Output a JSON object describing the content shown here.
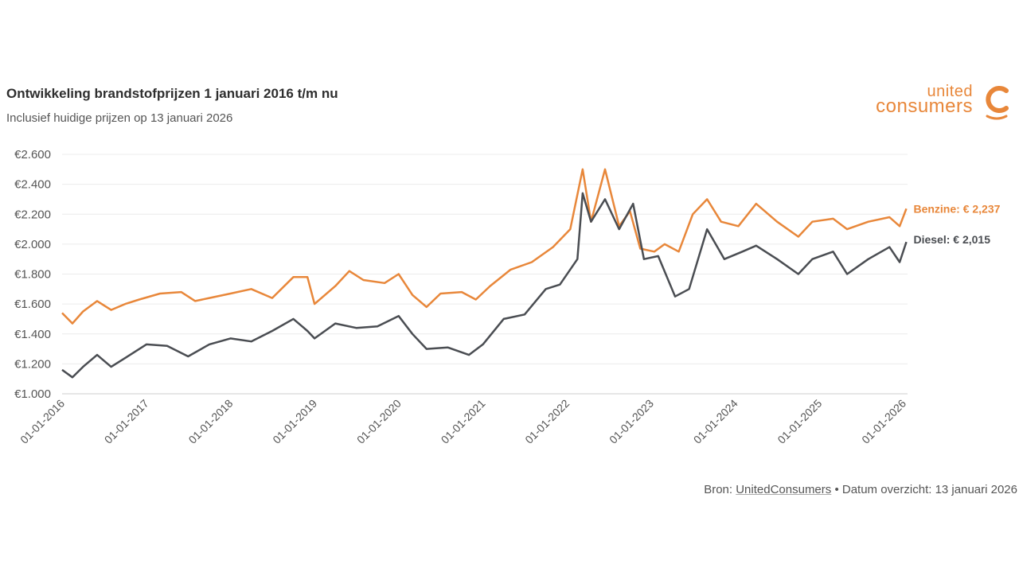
{
  "chart_data": {
    "type": "line",
    "title": "Ontwikkeling brandstofprijzen 1 januari 2016 t/m nu",
    "subtitle": "Inclusief huidige prijzen op 13 januari 2026",
    "xlabel": "",
    "ylabel": "",
    "xlim": [
      "2016-01-01",
      "2026-01-13"
    ],
    "ylim": [
      1.0,
      2.6
    ],
    "y_ticks": [
      "€1.000",
      "€1.200",
      "€1.400",
      "€1.600",
      "€1.800",
      "€2.000",
      "€2.200",
      "€2.400",
      "€2.600"
    ],
    "y_tick_values": [
      1.0,
      1.2,
      1.4,
      1.6,
      1.8,
      2.0,
      2.2,
      2.4,
      2.6
    ],
    "x_ticks": [
      "01-01-2016",
      "01-01-2017",
      "01-01-2018",
      "01-01-2019",
      "01-01-2020",
      "01-01-2021",
      "01-01-2022",
      "01-01-2023",
      "01-01-2024",
      "01-01-2025",
      "01-01-2026"
    ],
    "grid": "horizontal",
    "legend": "end-labels-right",
    "series": [
      {
        "name": "Benzine",
        "end_label": "Benzine: € 2,237",
        "color": "#e8873a",
        "points": [
          [
            "2016-01-01",
            1.54
          ],
          [
            "2016-02-15",
            1.47
          ],
          [
            "2016-04-01",
            1.55
          ],
          [
            "2016-06-01",
            1.62
          ],
          [
            "2016-08-01",
            1.56
          ],
          [
            "2016-10-01",
            1.6
          ],
          [
            "2016-12-01",
            1.63
          ],
          [
            "2017-03-01",
            1.67
          ],
          [
            "2017-06-01",
            1.68
          ],
          [
            "2017-08-01",
            1.62
          ],
          [
            "2017-10-01",
            1.64
          ],
          [
            "2018-01-01",
            1.67
          ],
          [
            "2018-04-01",
            1.7
          ],
          [
            "2018-07-01",
            1.64
          ],
          [
            "2018-10-01",
            1.78
          ],
          [
            "2018-12-01",
            1.78
          ],
          [
            "2019-01-01",
            1.6
          ],
          [
            "2019-04-01",
            1.72
          ],
          [
            "2019-06-01",
            1.82
          ],
          [
            "2019-08-01",
            1.76
          ],
          [
            "2019-11-01",
            1.74
          ],
          [
            "2020-01-01",
            1.8
          ],
          [
            "2020-03-01",
            1.66
          ],
          [
            "2020-05-01",
            1.58
          ],
          [
            "2020-07-01",
            1.67
          ],
          [
            "2020-10-01",
            1.68
          ],
          [
            "2020-12-01",
            1.63
          ],
          [
            "2021-02-01",
            1.72
          ],
          [
            "2021-05-01",
            1.83
          ],
          [
            "2021-08-01",
            1.88
          ],
          [
            "2021-11-01",
            1.98
          ],
          [
            "2022-01-15",
            2.1
          ],
          [
            "2022-03-10",
            2.5
          ],
          [
            "2022-04-15",
            2.15
          ],
          [
            "2022-06-15",
            2.5
          ],
          [
            "2022-08-15",
            2.12
          ],
          [
            "2022-10-01",
            2.22
          ],
          [
            "2022-11-15",
            1.97
          ],
          [
            "2023-01-15",
            1.95
          ],
          [
            "2023-03-01",
            2.0
          ],
          [
            "2023-05-01",
            1.95
          ],
          [
            "2023-07-01",
            2.2
          ],
          [
            "2023-09-01",
            2.3
          ],
          [
            "2023-11-01",
            2.15
          ],
          [
            "2024-01-15",
            2.12
          ],
          [
            "2024-04-01",
            2.27
          ],
          [
            "2024-07-01",
            2.15
          ],
          [
            "2024-10-01",
            2.05
          ],
          [
            "2024-12-01",
            2.15
          ],
          [
            "2025-03-01",
            2.17
          ],
          [
            "2025-05-01",
            2.1
          ],
          [
            "2025-08-01",
            2.15
          ],
          [
            "2025-11-01",
            2.18
          ],
          [
            "2025-12-15",
            2.12
          ],
          [
            "2026-01-13",
            2.237
          ]
        ]
      },
      {
        "name": "Diesel",
        "end_label": "Diesel: € 2,015",
        "color": "#4a4d52",
        "points": [
          [
            "2016-01-01",
            1.16
          ],
          [
            "2016-02-15",
            1.11
          ],
          [
            "2016-04-01",
            1.18
          ],
          [
            "2016-06-01",
            1.26
          ],
          [
            "2016-08-01",
            1.18
          ],
          [
            "2016-10-01",
            1.24
          ],
          [
            "2017-01-01",
            1.33
          ],
          [
            "2017-04-01",
            1.32
          ],
          [
            "2017-07-01",
            1.25
          ],
          [
            "2017-10-01",
            1.33
          ],
          [
            "2018-01-01",
            1.37
          ],
          [
            "2018-04-01",
            1.35
          ],
          [
            "2018-07-01",
            1.42
          ],
          [
            "2018-10-01",
            1.5
          ],
          [
            "2018-12-01",
            1.42
          ],
          [
            "2019-01-01",
            1.37
          ],
          [
            "2019-04-01",
            1.47
          ],
          [
            "2019-07-01",
            1.44
          ],
          [
            "2019-10-01",
            1.45
          ],
          [
            "2020-01-01",
            1.52
          ],
          [
            "2020-03-01",
            1.4
          ],
          [
            "2020-05-01",
            1.3
          ],
          [
            "2020-08-01",
            1.31
          ],
          [
            "2020-11-01",
            1.26
          ],
          [
            "2021-01-01",
            1.33
          ],
          [
            "2021-04-01",
            1.5
          ],
          [
            "2021-07-01",
            1.53
          ],
          [
            "2021-10-01",
            1.7
          ],
          [
            "2021-12-01",
            1.73
          ],
          [
            "2022-02-15",
            1.9
          ],
          [
            "2022-03-10",
            2.34
          ],
          [
            "2022-04-15",
            2.15
          ],
          [
            "2022-06-15",
            2.3
          ],
          [
            "2022-08-15",
            2.1
          ],
          [
            "2022-10-15",
            2.27
          ],
          [
            "2022-12-01",
            1.9
          ],
          [
            "2023-02-01",
            1.92
          ],
          [
            "2023-04-15",
            1.65
          ],
          [
            "2023-06-15",
            1.7
          ],
          [
            "2023-09-01",
            2.1
          ],
          [
            "2023-11-15",
            1.9
          ],
          [
            "2024-02-01",
            1.95
          ],
          [
            "2024-04-01",
            1.99
          ],
          [
            "2024-07-01",
            1.9
          ],
          [
            "2024-10-01",
            1.8
          ],
          [
            "2024-12-01",
            1.9
          ],
          [
            "2025-03-01",
            1.95
          ],
          [
            "2025-05-01",
            1.8
          ],
          [
            "2025-08-01",
            1.9
          ],
          [
            "2025-11-01",
            1.98
          ],
          [
            "2025-12-15",
            1.88
          ],
          [
            "2026-01-13",
            2.015
          ]
        ]
      }
    ]
  },
  "logo": {
    "line1": "united",
    "line2": "consumers",
    "color": "#e8873a"
  },
  "footer": {
    "prefix": "Bron: ",
    "link": "UnitedConsumers",
    "suffix": " • Datum overzicht: 13 januari 2026"
  }
}
